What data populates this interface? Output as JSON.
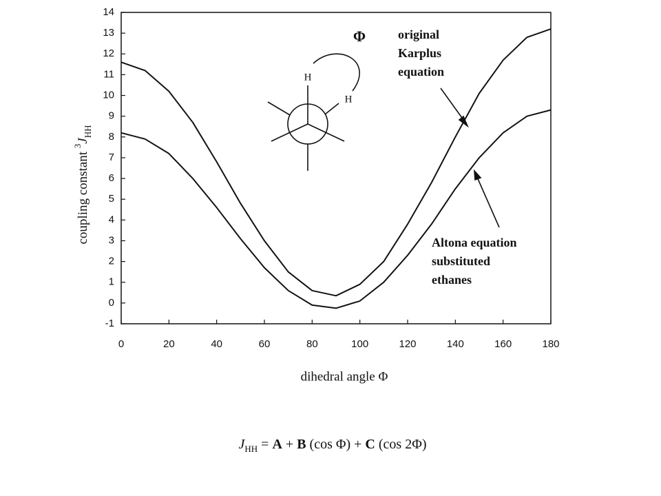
{
  "chart_data": {
    "type": "line",
    "x": [
      0,
      10,
      20,
      30,
      40,
      50,
      60,
      70,
      80,
      90,
      100,
      110,
      120,
      130,
      140,
      150,
      160,
      170,
      180
    ],
    "series": [
      {
        "name": "original Karplus equation",
        "color": "#111111",
        "values": [
          11.6,
          11.2,
          10.2,
          8.7,
          6.8,
          4.8,
          3.0,
          1.5,
          0.6,
          0.35,
          0.9,
          2.0,
          3.8,
          5.8,
          8.0,
          10.1,
          11.7,
          12.8,
          13.2
        ]
      },
      {
        "name": "Altona equation substituted ethanes",
        "color": "#111111",
        "values": [
          8.2,
          7.9,
          7.2,
          6.0,
          4.6,
          3.1,
          1.7,
          0.6,
          -0.1,
          -0.25,
          0.1,
          1.0,
          2.3,
          3.8,
          5.5,
          7.0,
          8.2,
          9.0,
          9.3
        ]
      }
    ],
    "xlim": [
      0,
      180
    ],
    "xticks": [
      0,
      20,
      40,
      60,
      80,
      100,
      120,
      140,
      160,
      180
    ],
    "ylim": [
      -1,
      14
    ],
    "yticks": [
      -1,
      0,
      1,
      2,
      3,
      4,
      5,
      6,
      7,
      8,
      9,
      10,
      11,
      12,
      13,
      14
    ],
    "x_label": "dihedral angle Φ",
    "y_label": [
      {
        "text": "coupling constant "
      },
      {
        "text": "3",
        "style": "sup"
      },
      {
        "text": "J",
        "style": "italic"
      },
      {
        "text": "HH",
        "style": "sub"
      }
    ],
    "annotations": {
      "phi": "Φ",
      "karplus": [
        "original",
        "Karplus",
        "equation"
      ],
      "altona": [
        "Altona equation",
        "substituted",
        "ethanes"
      ],
      "newman_h": [
        "H",
        "H"
      ]
    },
    "formula": [
      {
        "text": "J",
        "style": "italic"
      },
      {
        "text": "HH",
        "style": "sub"
      },
      {
        "text": " = "
      },
      {
        "text": "A",
        "style": "bold"
      },
      {
        "text": " + "
      },
      {
        "text": "B",
        "style": "bold"
      },
      {
        "text": " (cos Φ) + "
      },
      {
        "text": "C",
        "style": "bold"
      },
      {
        "text": " (cos 2Φ)"
      }
    ]
  }
}
